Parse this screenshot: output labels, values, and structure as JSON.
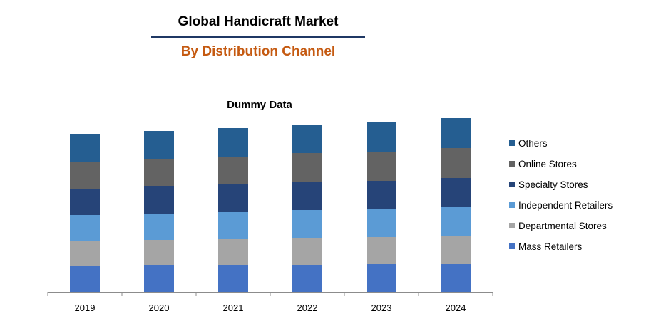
{
  "header": {
    "title": "Global Handicraft Market",
    "subtitle": "By Distribution Channel",
    "title_rule_color": "#1f3864",
    "subtitle_color": "#c55a11"
  },
  "chart_data": {
    "type": "bar",
    "stacked": true,
    "title": "Dummy Data",
    "xlabel": "",
    "ylabel": "",
    "y_axis_visible": false,
    "grid": false,
    "legend_position": "right",
    "ylim": [
      0,
      250
    ],
    "categories": [
      "2019",
      "2020",
      "2021",
      "2022",
      "2023",
      "2024"
    ],
    "series": [
      {
        "name": "Mass Retailers",
        "color": "#4472c4",
        "values": [
          36,
          37,
          37,
          38,
          39,
          39
        ]
      },
      {
        "name": "Departmental Stores",
        "color": "#a5a5a5",
        "values": [
          36,
          36,
          37,
          38,
          38,
          40
        ]
      },
      {
        "name": "Independent Retailers",
        "color": "#5b9bd5",
        "values": [
          36,
          37,
          38,
          39,
          39,
          40
        ]
      },
      {
        "name": "Specialty Stores",
        "color": "#264478",
        "values": [
          37,
          38,
          39,
          40,
          40,
          41
        ]
      },
      {
        "name": "Online Stores",
        "color": "#636363",
        "values": [
          38,
          39,
          39,
          40,
          41,
          42
        ]
      },
      {
        "name": "Others",
        "color": "#255e91",
        "values": [
          39,
          39,
          40,
          40,
          42,
          42
        ]
      }
    ]
  }
}
